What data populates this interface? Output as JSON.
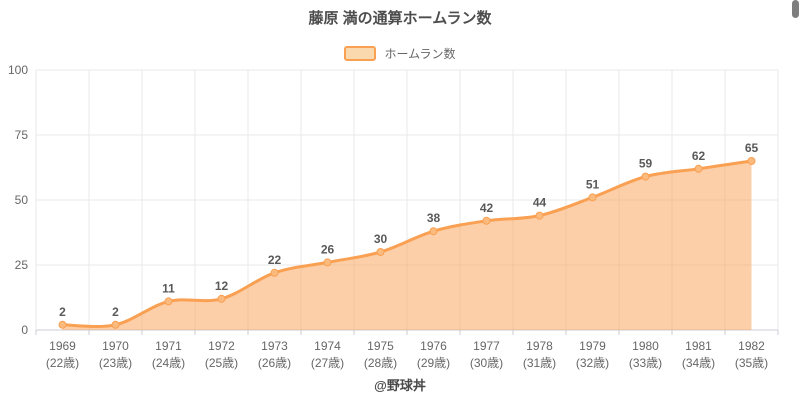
{
  "chart_data": {
    "type": "area",
    "title": "藤原 満の通算ホームラン数",
    "legend_label": "ホームラン数",
    "attribution": "@野球丼",
    "categories": [
      "1969",
      "1970",
      "1971",
      "1972",
      "1973",
      "1974",
      "1975",
      "1976",
      "1977",
      "1978",
      "1979",
      "1980",
      "1981",
      "1982"
    ],
    "age_labels": [
      "(22歳)",
      "(23歳)",
      "(24歳)",
      "(25歳)",
      "(26歳)",
      "(27歳)",
      "(28歳)",
      "(29歳)",
      "(30歳)",
      "(31歳)",
      "(32歳)",
      "(33歳)",
      "(34歳)",
      "(35歳)"
    ],
    "values": [
      2,
      2,
      11,
      12,
      22,
      26,
      30,
      38,
      42,
      44,
      51,
      59,
      62,
      65
    ],
    "xlabel": "",
    "ylabel": "",
    "ylim": [
      0,
      100
    ],
    "yticks": [
      0,
      25,
      50,
      75,
      100
    ],
    "grid": true,
    "legend_position": "top",
    "smooth": true,
    "colors": {
      "line": "#f9a052",
      "fill": "rgba(249,160,82,0.5)",
      "marker": "#fbba7e",
      "legend_fill": "#fbd9ae",
      "data_label": "#595959",
      "axis_label": "#666666",
      "grid": "#e8e8e8",
      "axis": "#ccccd6",
      "title": "#4d4d4d",
      "attribution": "#4a4a4a"
    }
  }
}
